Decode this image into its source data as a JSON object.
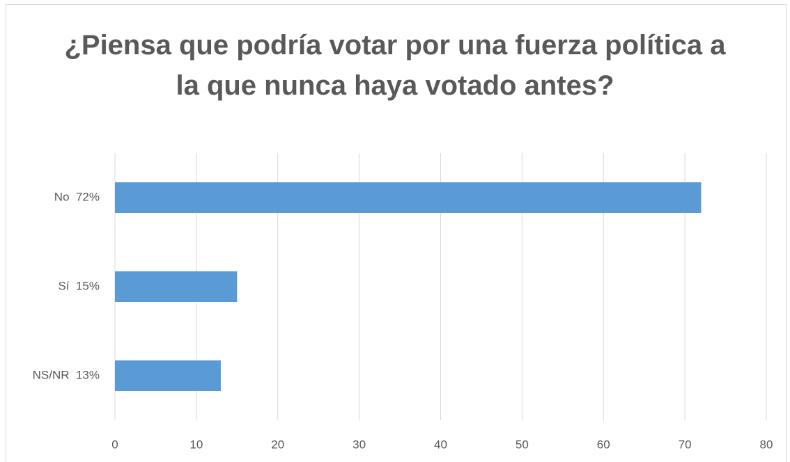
{
  "chart_data": {
    "type": "bar",
    "orientation": "horizontal",
    "title": "¿Piensa que podría votar por una fuerza política a la que nunca haya votado antes?",
    "categories": [
      "No  72%",
      "Sí  15%",
      "NS/NR  13%"
    ],
    "values": [
      72,
      15,
      13
    ],
    "color": "#5b9bd5",
    "xlim": [
      0,
      80
    ],
    "xticks": [
      0,
      10,
      20,
      30,
      40,
      50,
      60,
      70,
      80
    ],
    "grid": true
  }
}
